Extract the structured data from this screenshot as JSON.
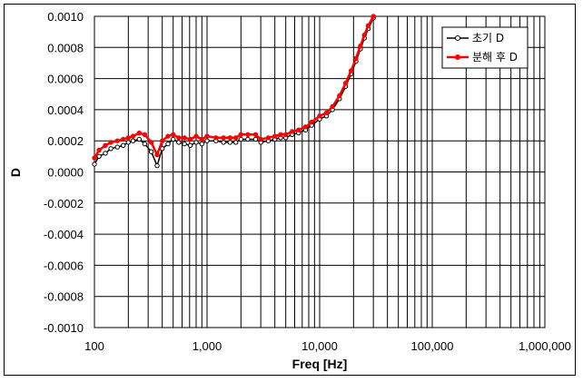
{
  "chart_data": {
    "type": "line",
    "title": "",
    "xlabel": "Freq [Hz]",
    "ylabel": "D",
    "x_scale": "log",
    "xlim": [
      100,
      1000000
    ],
    "ylim": [
      -0.001,
      0.001
    ],
    "grid": true,
    "legend_position": "top-right",
    "x_tick_labels": [
      "100",
      "1,000",
      "10,000",
      "100,000",
      "1,000,000"
    ],
    "y_tick_labels": [
      "0.0010",
      "0.0008",
      "0.0006",
      "0.0004",
      "0.0002",
      "0.0000",
      "-0.0002",
      "-0.0004",
      "-0.0006",
      "-0.0008",
      "-0.0010"
    ],
    "x": [
      100,
      110,
      125,
      140,
      160,
      180,
      200,
      220,
      250,
      280,
      320,
      360,
      400,
      450,
      500,
      560,
      630,
      710,
      800,
      900,
      1000,
      1200,
      1400,
      1600,
      1800,
      2000,
      2300,
      2700,
      3000,
      3500,
      4000,
      4500,
      5000,
      5700,
      6500,
      7500,
      8500,
      10000,
      11500,
      13000,
      15000,
      17000,
      19000,
      21000,
      23000,
      25000,
      27000,
      30000
    ],
    "series": [
      {
        "name": "초기 D",
        "color": "#000000",
        "values": [
          5e-05,
          0.0001,
          0.00012,
          0.00015,
          0.00016,
          0.00017,
          0.00019,
          0.0002,
          0.00021,
          0.00018,
          0.00013,
          4e-05,
          0.00015,
          0.00018,
          0.00021,
          0.00019,
          0.00018,
          0.00017,
          0.00019,
          0.00018,
          0.0002,
          0.0002,
          0.00019,
          0.00019,
          0.00019,
          0.00021,
          0.00021,
          0.00021,
          0.00019,
          0.0002,
          0.00021,
          0.00022,
          0.00022,
          0.00024,
          0.00025,
          0.00027,
          0.0003,
          0.00034,
          0.00036,
          0.0004,
          0.00047,
          0.00055,
          0.00063,
          0.00071,
          0.00079,
          0.00086,
          0.00092,
          0.00099
        ]
      },
      {
        "name": "분해 후 D",
        "color": "#ff0000",
        "values": [
          9e-05,
          0.00014,
          0.00017,
          0.00019,
          0.0002,
          0.00021,
          0.00022,
          0.00023,
          0.00025,
          0.00024,
          0.00019,
          0.00011,
          0.0002,
          0.00023,
          0.00024,
          0.00022,
          0.00022,
          0.00021,
          0.00023,
          0.00021,
          0.00023,
          0.00022,
          0.00022,
          0.00022,
          0.00022,
          0.00024,
          0.00024,
          0.00024,
          0.00021,
          0.00022,
          0.00023,
          0.00024,
          0.00024,
          0.00026,
          0.00027,
          0.00029,
          0.00032,
          0.00036,
          0.00038,
          0.00042,
          0.00049,
          0.00057,
          0.00065,
          0.00073,
          0.00081,
          0.00088,
          0.00094,
          0.001
        ]
      }
    ]
  }
}
